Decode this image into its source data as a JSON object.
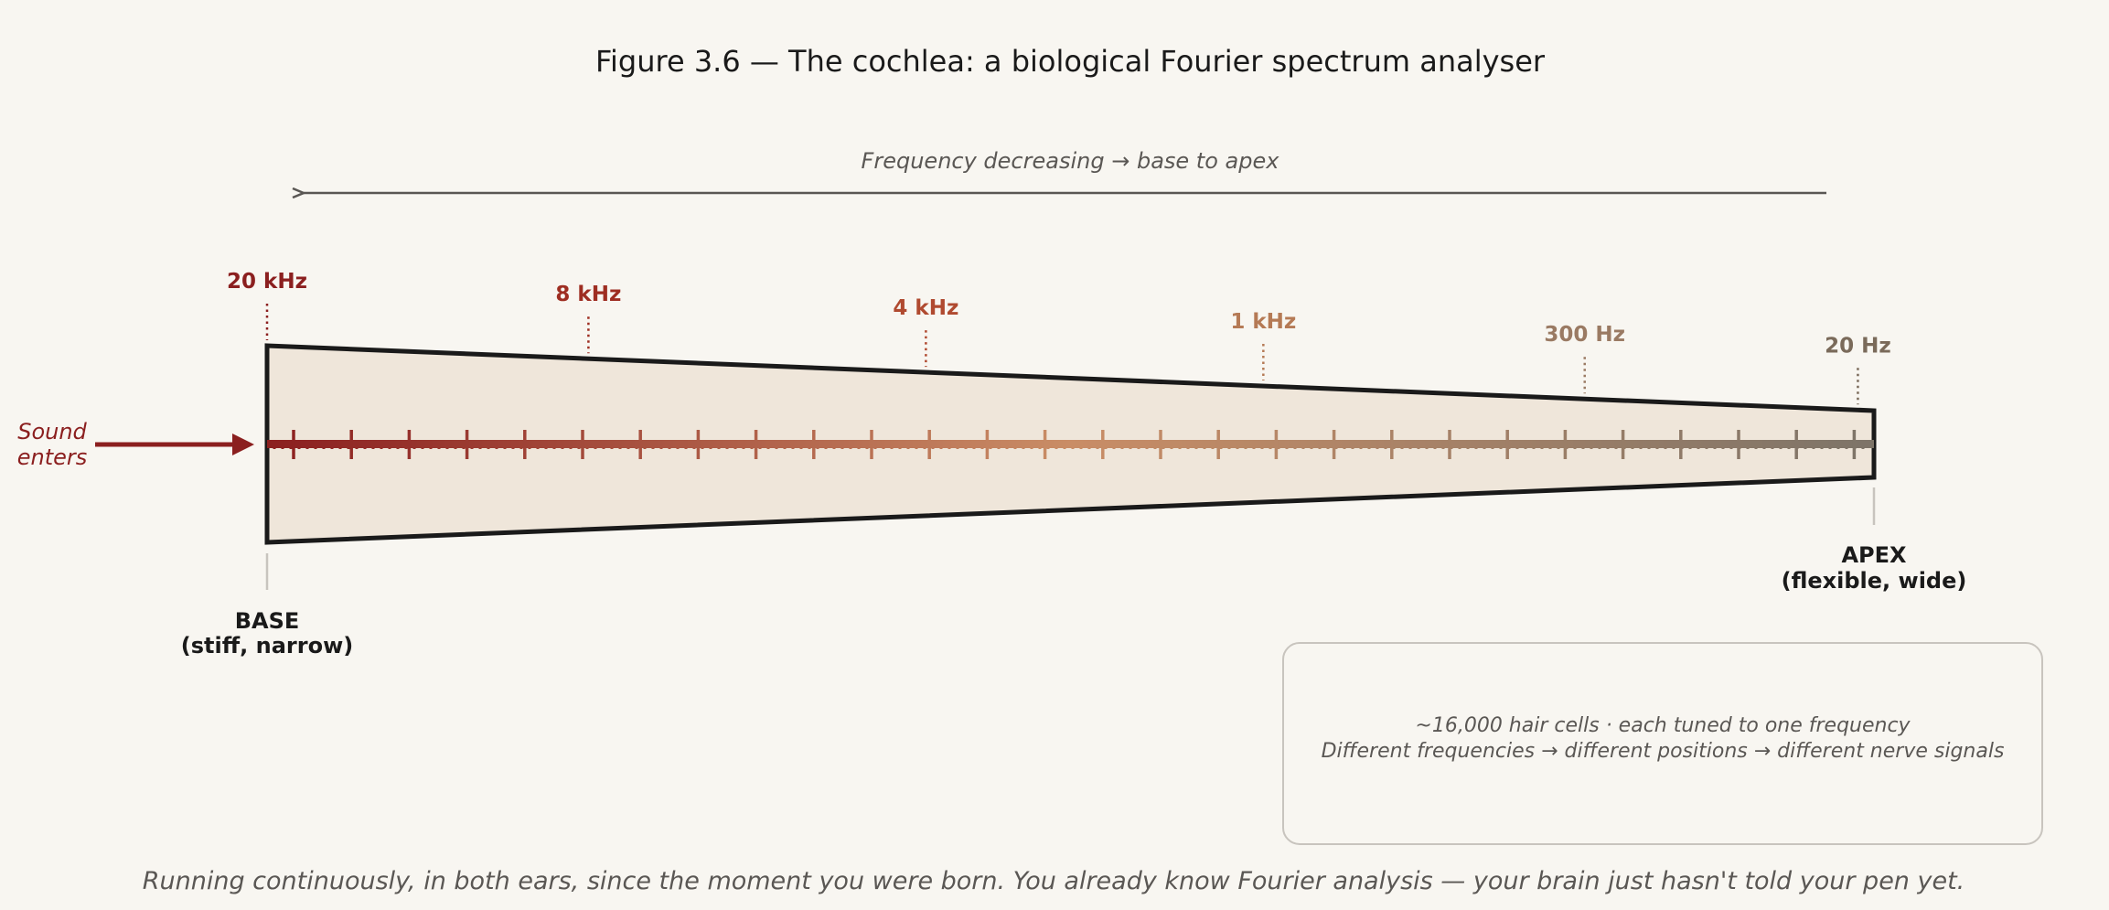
{
  "figure": {
    "title": "Figure 3.6 — The cochlea: a biological Fourier spectrum analyser"
  },
  "direction": {
    "caption": "Frequency decreasing →  base to apex"
  },
  "frequency_markers": [
    {
      "label": "20 kHz",
      "position": 0.0,
      "color": "#8b1f1f"
    },
    {
      "label": "8 kHz",
      "position": 0.2,
      "color": "#9e2e22"
    },
    {
      "label": "4 kHz",
      "position": 0.41,
      "color": "#b04a30"
    },
    {
      "label": "1 kHz",
      "position": 0.62,
      "color": "#b57a55"
    },
    {
      "label": "300 Hz",
      "position": 0.82,
      "color": "#9a7a63"
    },
    {
      "label": "20 Hz",
      "position": 0.99,
      "color": "#7a6a5a"
    }
  ],
  "input": {
    "line1": "Sound",
    "line2": "enters"
  },
  "base": {
    "line1": "BASE",
    "line2": "(stiff, narrow)"
  },
  "apex": {
    "line1": "APEX",
    "line2": "(flexible, wide)"
  },
  "note": {
    "line1": "~16,000 hair cells · each tuned to one frequency",
    "line2": "Different frequencies → different positions → different nerve signals"
  },
  "footer": {
    "text": "Running continuously, in both ears, since the moment you were born.  You already know Fourier analysis — your brain just hasn't told your pen yet."
  },
  "colors": {
    "background": "#f8f6f1",
    "membrane_fill": "#efe6da",
    "outline": "#1a1a1a",
    "gradient_start": "#8b1f1f",
    "gradient_mid": "#c98d66",
    "gradient_end": "#7d7468",
    "guide_arrow": "#5a5754",
    "input_arrow": "#8b1f1f",
    "note_border": "#c8c4be"
  }
}
